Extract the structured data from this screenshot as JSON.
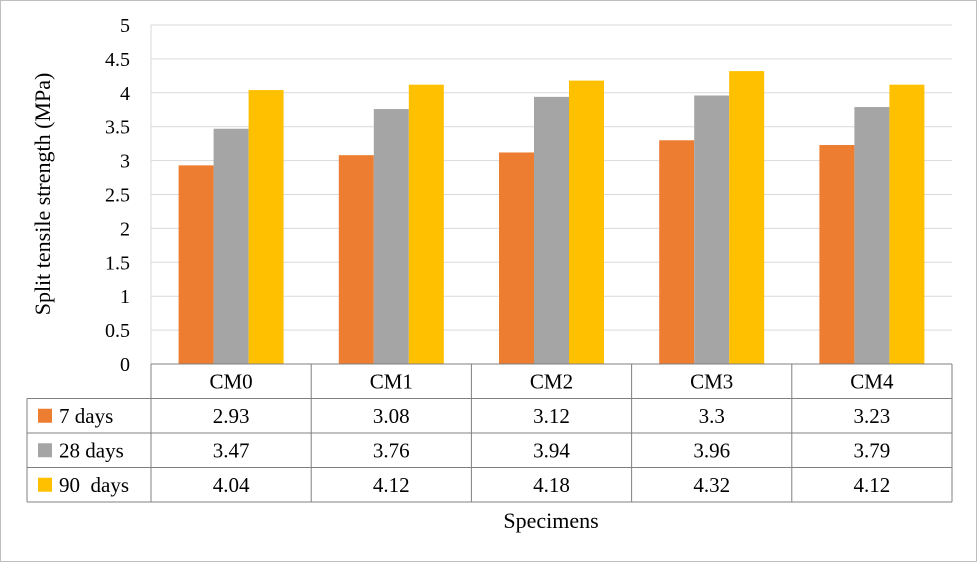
{
  "chart_data": {
    "type": "bar",
    "title": "",
    "xlabel": "Specimens",
    "ylabel": "Split tensile strength (MPa)",
    "ylim": [
      0,
      5
    ],
    "yticks": [
      "0",
      "0.5",
      "1",
      "1.5",
      "2",
      "2.5",
      "3",
      "3.5",
      "4",
      "4.5",
      "5"
    ],
    "grid": true,
    "legend": "data-table-rows",
    "categories": [
      "CM0",
      "CM1",
      "CM2",
      "CM3",
      "CM4"
    ],
    "series": [
      {
        "name": "7 days",
        "color": "#ED7D31",
        "values": [
          2.93,
          3.08,
          3.12,
          3.3,
          3.23
        ],
        "labels": [
          "2.93",
          "3.08",
          "3.12",
          "3.3",
          "3.23"
        ]
      },
      {
        "name": "28 days",
        "color": "#A5A5A5",
        "values": [
          3.47,
          3.76,
          3.94,
          3.96,
          3.79
        ],
        "labels": [
          "3.47",
          "3.76",
          "3.94",
          "3.96",
          "3.79"
        ]
      },
      {
        "name": "90  days",
        "color": "#FFC000",
        "values": [
          4.04,
          4.12,
          4.18,
          4.32,
          4.12
        ],
        "labels": [
          "4.04",
          "4.12",
          "4.18",
          "4.32",
          "4.12"
        ]
      }
    ]
  }
}
